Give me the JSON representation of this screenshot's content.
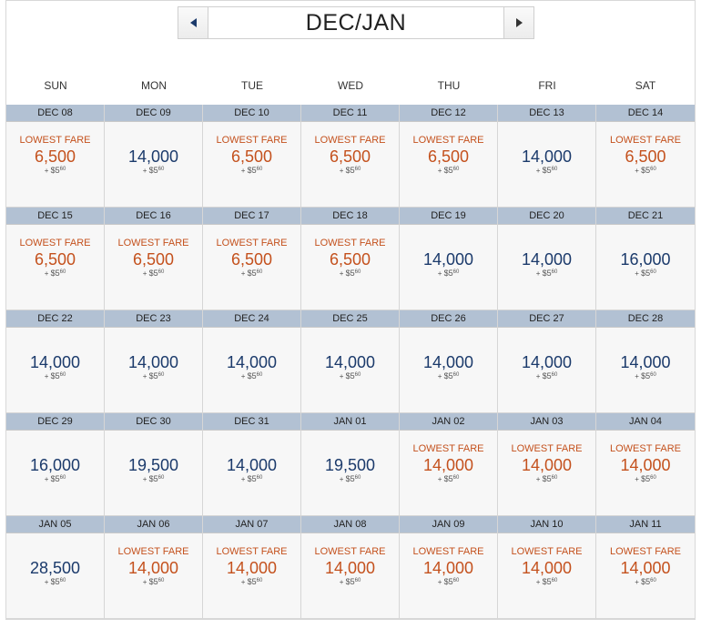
{
  "header": {
    "month_label": "DEC/JAN"
  },
  "weekdays": [
    "SUN",
    "MON",
    "TUE",
    "WED",
    "THU",
    "FRI",
    "SAT"
  ],
  "lowest_fare_label": "LOWEST FARE",
  "tax_prefix": "+",
  "cells": [
    {
      "date": "DEC 08",
      "miles": "6,500",
      "lowest": true,
      "tax_dollar": "$5",
      "tax_cents": "60"
    },
    {
      "date": "DEC 09",
      "miles": "14,000",
      "lowest": false,
      "tax_dollar": "$5",
      "tax_cents": "60"
    },
    {
      "date": "DEC 10",
      "miles": "6,500",
      "lowest": true,
      "tax_dollar": "$5",
      "tax_cents": "60"
    },
    {
      "date": "DEC 11",
      "miles": "6,500",
      "lowest": true,
      "tax_dollar": "$5",
      "tax_cents": "60"
    },
    {
      "date": "DEC 12",
      "miles": "6,500",
      "lowest": true,
      "tax_dollar": "$5",
      "tax_cents": "60"
    },
    {
      "date": "DEC 13",
      "miles": "14,000",
      "lowest": false,
      "tax_dollar": "$5",
      "tax_cents": "60"
    },
    {
      "date": "DEC 14",
      "miles": "6,500",
      "lowest": true,
      "tax_dollar": "$5",
      "tax_cents": "60"
    },
    {
      "date": "DEC 15",
      "miles": "6,500",
      "lowest": true,
      "tax_dollar": "$5",
      "tax_cents": "60"
    },
    {
      "date": "DEC 16",
      "miles": "6,500",
      "lowest": true,
      "tax_dollar": "$5",
      "tax_cents": "60"
    },
    {
      "date": "DEC 17",
      "miles": "6,500",
      "lowest": true,
      "tax_dollar": "$5",
      "tax_cents": "60"
    },
    {
      "date": "DEC 18",
      "miles": "6,500",
      "lowest": true,
      "tax_dollar": "$5",
      "tax_cents": "60"
    },
    {
      "date": "DEC 19",
      "miles": "14,000",
      "lowest": false,
      "tax_dollar": "$5",
      "tax_cents": "60"
    },
    {
      "date": "DEC 20",
      "miles": "14,000",
      "lowest": false,
      "tax_dollar": "$5",
      "tax_cents": "60"
    },
    {
      "date": "DEC 21",
      "miles": "16,000",
      "lowest": false,
      "tax_dollar": "$5",
      "tax_cents": "60"
    },
    {
      "date": "DEC 22",
      "miles": "14,000",
      "lowest": false,
      "tax_dollar": "$5",
      "tax_cents": "60"
    },
    {
      "date": "DEC 23",
      "miles": "14,000",
      "lowest": false,
      "tax_dollar": "$5",
      "tax_cents": "60"
    },
    {
      "date": "DEC 24",
      "miles": "14,000",
      "lowest": false,
      "tax_dollar": "$5",
      "tax_cents": "60"
    },
    {
      "date": "DEC 25",
      "miles": "14,000",
      "lowest": false,
      "tax_dollar": "$5",
      "tax_cents": "60"
    },
    {
      "date": "DEC 26",
      "miles": "14,000",
      "lowest": false,
      "tax_dollar": "$5",
      "tax_cents": "60"
    },
    {
      "date": "DEC 27",
      "miles": "14,000",
      "lowest": false,
      "tax_dollar": "$5",
      "tax_cents": "60"
    },
    {
      "date": "DEC 28",
      "miles": "14,000",
      "lowest": false,
      "tax_dollar": "$5",
      "tax_cents": "60"
    },
    {
      "date": "DEC 29",
      "miles": "16,000",
      "lowest": false,
      "tax_dollar": "$5",
      "tax_cents": "60"
    },
    {
      "date": "DEC 30",
      "miles": "19,500",
      "lowest": false,
      "tax_dollar": "$5",
      "tax_cents": "60"
    },
    {
      "date": "DEC 31",
      "miles": "14,000",
      "lowest": false,
      "tax_dollar": "$5",
      "tax_cents": "60"
    },
    {
      "date": "JAN 01",
      "miles": "19,500",
      "lowest": false,
      "tax_dollar": "$5",
      "tax_cents": "60"
    },
    {
      "date": "JAN 02",
      "miles": "14,000",
      "lowest": true,
      "tax_dollar": "$5",
      "tax_cents": "60"
    },
    {
      "date": "JAN 03",
      "miles": "14,000",
      "lowest": true,
      "tax_dollar": "$5",
      "tax_cents": "60"
    },
    {
      "date": "JAN 04",
      "miles": "14,000",
      "lowest": true,
      "tax_dollar": "$5",
      "tax_cents": "60"
    },
    {
      "date": "JAN 05",
      "miles": "28,500",
      "lowest": false,
      "tax_dollar": "$5",
      "tax_cents": "60"
    },
    {
      "date": "JAN 06",
      "miles": "14,000",
      "lowest": true,
      "tax_dollar": "$5",
      "tax_cents": "60"
    },
    {
      "date": "JAN 07",
      "miles": "14,000",
      "lowest": true,
      "tax_dollar": "$5",
      "tax_cents": "60"
    },
    {
      "date": "JAN 08",
      "miles": "14,000",
      "lowest": true,
      "tax_dollar": "$5",
      "tax_cents": "60"
    },
    {
      "date": "JAN 09",
      "miles": "14,000",
      "lowest": true,
      "tax_dollar": "$5",
      "tax_cents": "60"
    },
    {
      "date": "JAN 10",
      "miles": "14,000",
      "lowest": true,
      "tax_dollar": "$5",
      "tax_cents": "60"
    },
    {
      "date": "JAN 11",
      "miles": "14,000",
      "lowest": true,
      "tax_dollar": "$5",
      "tax_cents": "60"
    }
  ],
  "icons": {
    "prev": "caret-left-icon",
    "next": "caret-right-icon"
  },
  "colors": {
    "lowest": "#c4511d",
    "regular": "#1b3a6b",
    "date_header_bg": "#b2c1d3"
  }
}
